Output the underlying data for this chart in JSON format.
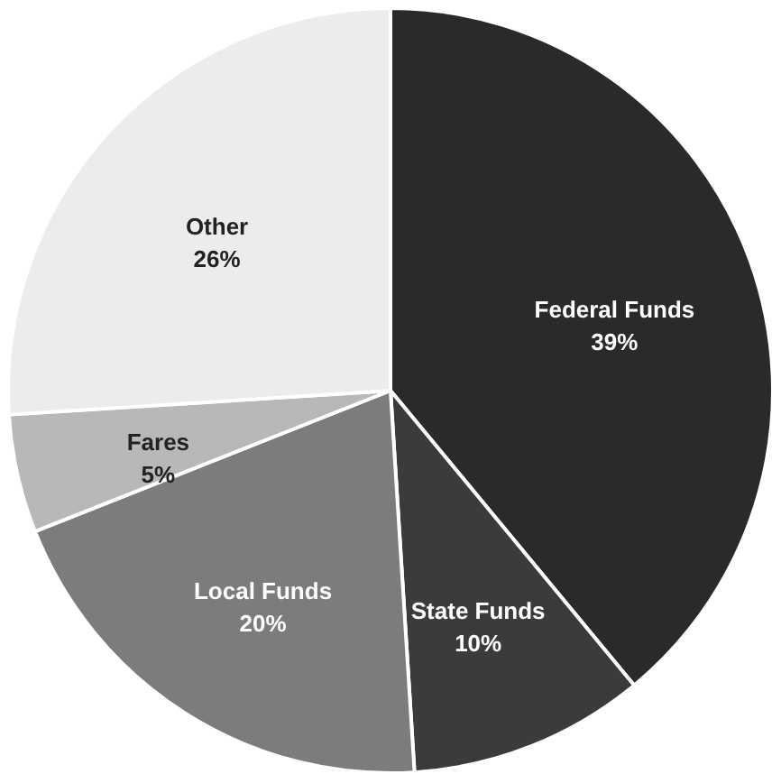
{
  "chart_data": {
    "type": "pie",
    "categories": [
      "Federal Funds",
      "State Funds",
      "Local Funds",
      "Fares",
      "Other"
    ],
    "values": [
      39,
      10,
      20,
      5,
      26
    ],
    "colors": [
      "#2a2a2a",
      "#3b3b3b",
      "#7c7c7c",
      "#b8b8b8",
      "#ececec"
    ],
    "value_labels": [
      "39%",
      "10%",
      "20%",
      "5%",
      "26%"
    ]
  }
}
